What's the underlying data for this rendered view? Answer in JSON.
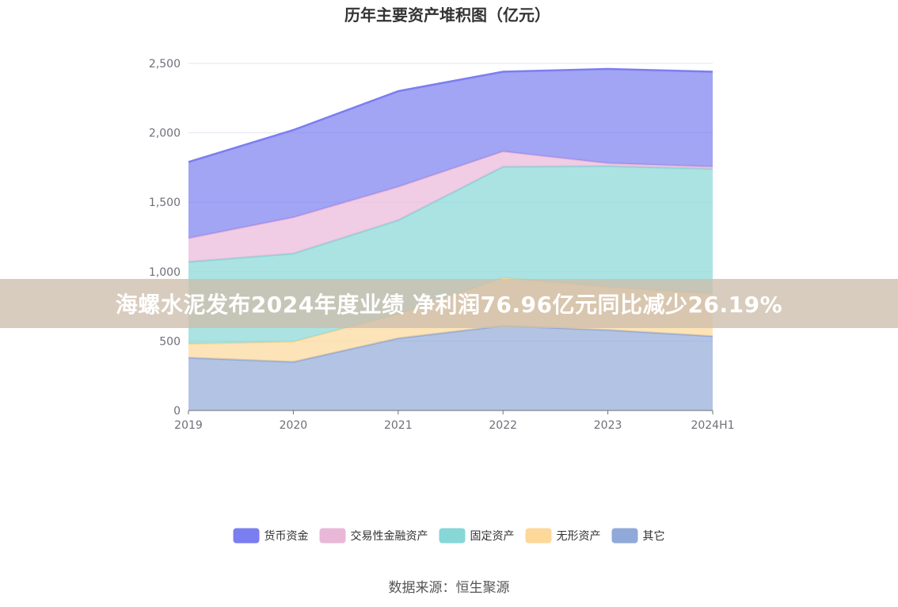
{
  "chart_data": {
    "type": "area",
    "stacked": true,
    "title": "历年主要资产堆积图（亿元）",
    "categories": [
      "2019",
      "2020",
      "2021",
      "2022",
      "2023",
      "2024H1"
    ],
    "ylim": [
      0,
      2500
    ],
    "yticks": [
      "0",
      "500",
      "1,000",
      "1,500",
      "2,000",
      "2,500"
    ],
    "ytick_values": [
      0,
      500,
      1000,
      1500,
      2000,
      2500
    ],
    "grid": true,
    "legend_position": "bottom-center",
    "series": [
      {
        "name": "其它",
        "color": "#91a9d9",
        "values": [
          380,
          350,
          520,
          610,
          580,
          535
        ]
      },
      {
        "name": "无形资产",
        "color": "#fcd89a",
        "values": [
          100,
          145,
          175,
          345,
          310,
          305
        ]
      },
      {
        "name": "固定资产",
        "color": "#87d7d7",
        "values": [
          590,
          635,
          675,
          800,
          870,
          900
        ]
      },
      {
        "name": "交易性金融资产",
        "color": "#e9b8d9",
        "values": [
          170,
          260,
          240,
          110,
          20,
          15
        ]
      },
      {
        "name": "货币资金",
        "color": "#7b7ef0",
        "values": [
          550,
          630,
          690,
          575,
          680,
          685
        ]
      }
    ],
    "legend_order": [
      "货币资金",
      "交易性金融资产",
      "固定资产",
      "无形资产",
      "其它"
    ],
    "source": "数据来源：恒生聚源"
  },
  "banner": {
    "text": "海螺水泥发布2024年度业绩 净利润76.96亿元同比减少26.19%"
  }
}
